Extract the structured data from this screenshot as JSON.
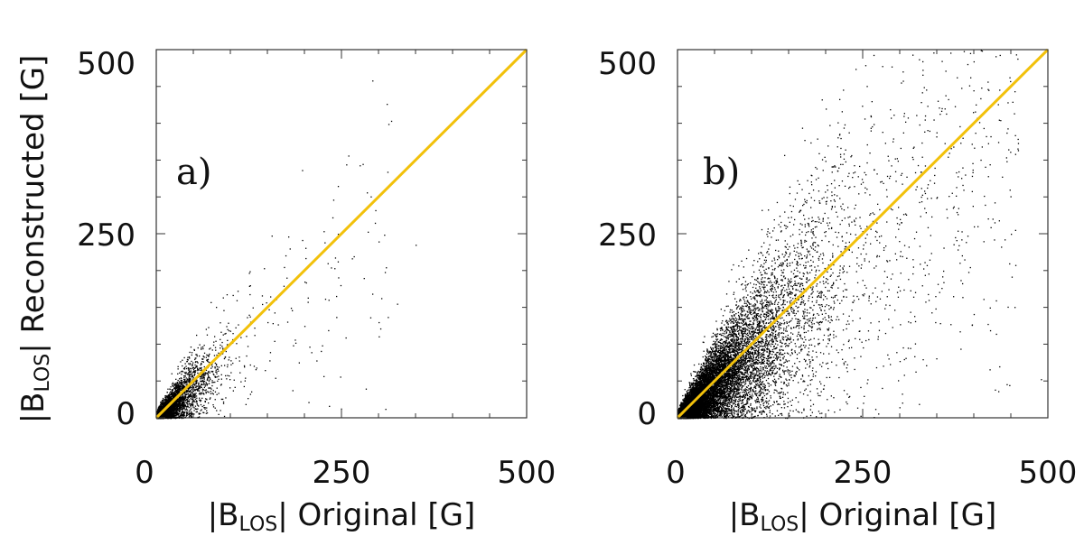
{
  "chart_data": [
    {
      "type": "scatter",
      "panel_label": "a)",
      "xlabel": {
        "prefix": "|B",
        "sub": "LOS",
        "suffix": "| Original [G]"
      },
      "ylabel": {
        "prefix": "|B",
        "sub": "LOS",
        "suffix": "| Reconstructed [G]"
      },
      "xlim": [
        0,
        500
      ],
      "ylim": [
        0,
        500
      ],
      "xticks": [
        "0",
        "250",
        "500"
      ],
      "yticks": [
        "0",
        "250",
        "500"
      ],
      "reference_line": {
        "x": [
          0,
          500
        ],
        "y": [
          0,
          500
        ],
        "color": "#f2c10b"
      },
      "point_color": "#000000",
      "description_series": "dense cluster of points concentrated near the origin, mostly within 0-80 G on both axes, sparse points extending to ~300 G",
      "sample_points": [
        [
          20,
          15
        ],
        [
          35,
          30
        ],
        [
          50,
          42
        ],
        [
          60,
          55
        ],
        [
          75,
          70
        ],
        [
          95,
          100
        ],
        [
          130,
          150
        ],
        [
          150,
          130
        ],
        [
          180,
          230
        ],
        [
          200,
          185
        ],
        [
          245,
          315
        ],
        [
          280,
          190
        ],
        [
          300,
          130
        ],
        [
          325,
          155
        ],
        [
          350,
          235
        ],
        [
          245,
          250
        ],
        [
          295,
          265
        ]
      ]
    },
    {
      "type": "scatter",
      "panel_label": "b)",
      "xlabel": {
        "prefix": "|B",
        "sub": "LOS",
        "suffix": "| Original [G]"
      },
      "ylabel": {
        "prefix": "|B",
        "sub": "LOS",
        "suffix": "| Reconstructed [G]"
      },
      "xlim": [
        0,
        500
      ],
      "ylim": [
        0,
        500
      ],
      "xticks": [
        "0",
        "250",
        "500"
      ],
      "yticks": [
        "0",
        "250",
        "500"
      ],
      "reference_line": {
        "x": [
          0,
          500
        ],
        "y": [
          0,
          500
        ],
        "color": "#f2c10b"
      },
      "point_color": "#000000",
      "description_series": "very dense cloud from the origin extending to ~450 G along the diagonal with wide spread; highest density below 100 G",
      "sample_points": [
        [
          30,
          25
        ],
        [
          60,
          55
        ],
        [
          100,
          90
        ],
        [
          150,
          140
        ],
        [
          200,
          190
        ],
        [
          250,
          230
        ],
        [
          300,
          270
        ],
        [
          350,
          300
        ],
        [
          400,
          260
        ],
        [
          450,
          250
        ],
        [
          200,
          420
        ],
        [
          220,
          380
        ],
        [
          180,
          330
        ],
        [
          120,
          250
        ],
        [
          330,
          180
        ]
      ]
    }
  ]
}
